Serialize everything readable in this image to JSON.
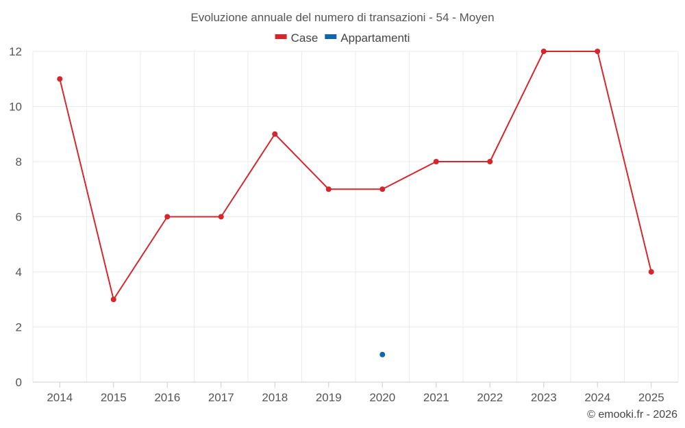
{
  "chart_data": {
    "type": "line",
    "title": "Evoluzione annuale del numero di transazioni - 54 - Moyen",
    "categories": [
      "2014",
      "2015",
      "2016",
      "2017",
      "2018",
      "2019",
      "2020",
      "2021",
      "2022",
      "2023",
      "2024",
      "2025"
    ],
    "series": [
      {
        "name": "Case",
        "color": "#d7262b",
        "values": [
          11,
          3,
          6,
          6,
          9,
          7,
          7,
          8,
          8,
          12,
          12,
          4
        ]
      },
      {
        "name": "Appartamenti",
        "color": "#1066a8",
        "values": [
          null,
          null,
          null,
          null,
          null,
          null,
          1,
          null,
          null,
          null,
          null,
          null
        ]
      }
    ],
    "ylim": [
      0,
      12
    ],
    "yticks": [
      "0",
      "2",
      "4",
      "6",
      "8",
      "10",
      "12"
    ],
    "xlabel": "",
    "ylabel": "",
    "grid": true,
    "legend_position": "top-center"
  },
  "credit": "© emooki.fr - 2026"
}
